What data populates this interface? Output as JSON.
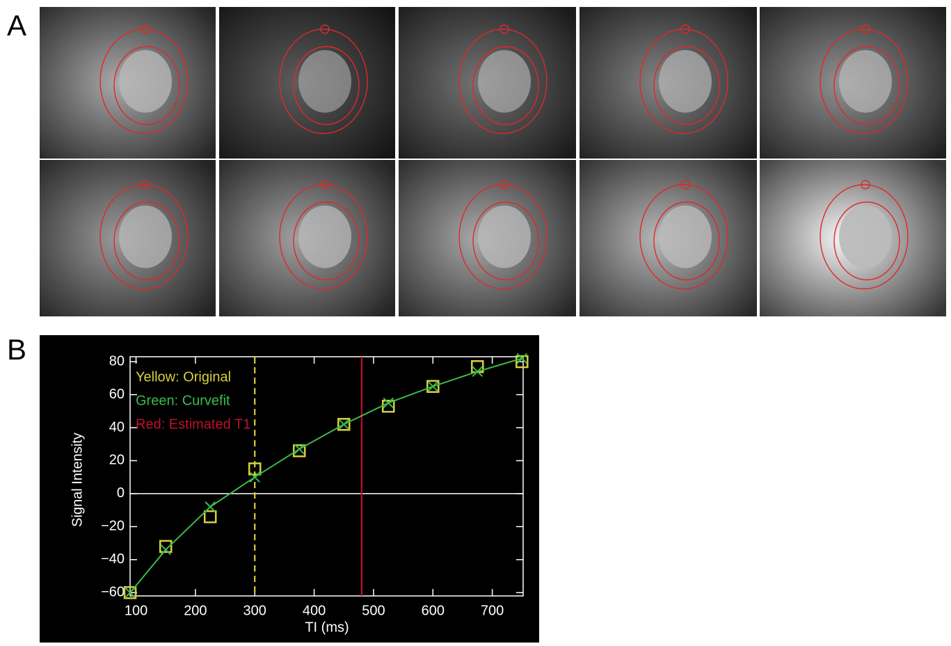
{
  "panels": {
    "a": "A",
    "b": "B"
  },
  "chart_data": {
    "type": "line",
    "xlabel": "TI (ms)",
    "ylabel": "Signal Intensity",
    "x": [
      90,
      150,
      225,
      300,
      375,
      450,
      525,
      600,
      675,
      750
    ],
    "series": [
      {
        "name": "Yellow: Original",
        "color": "#d9cf3c",
        "marker": "square",
        "line": false,
        "values": [
          -60,
          -32,
          -14,
          15,
          26,
          42,
          53,
          65,
          77,
          80
        ]
      },
      {
        "name": "Green: Curvefit",
        "color": "#3dbb4a",
        "marker": "x",
        "line": true,
        "values": [
          -60,
          -34,
          -8,
          10,
          27,
          42,
          55,
          65,
          74,
          82
        ]
      }
    ],
    "vlines": [
      {
        "x": 300,
        "color": "#d9cf3c",
        "dash": true
      },
      {
        "name": "Red: Estimated T1",
        "x": 480,
        "color": "#c0102a",
        "dash": false
      }
    ],
    "hline": 0,
    "xlim": [
      90,
      752
    ],
    "xticks": [
      100,
      200,
      300,
      400,
      500,
      600,
      700
    ],
    "ylim": [
      -62,
      83
    ],
    "yticks": [
      {
        "value": -60,
        "label": "−60"
      },
      {
        "value": -40,
        "label": "−40"
      },
      {
        "value": -20,
        "label": "−20"
      },
      0,
      20,
      40,
      60,
      80
    ]
  }
}
